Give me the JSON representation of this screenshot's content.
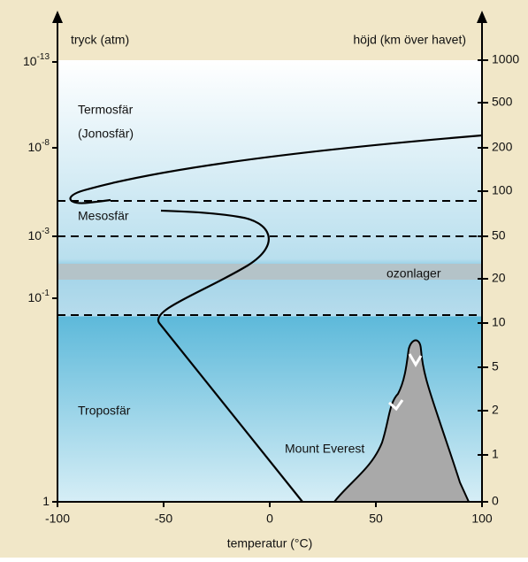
{
  "axes": {
    "left_title": "tryck (atm)",
    "right_title": "höjd (km över havet)",
    "bottom_title": "temperatur (°C)"
  },
  "left_ticks": [
    {
      "base": "10",
      "exp": "-13"
    },
    {
      "base": "10",
      "exp": "-8"
    },
    {
      "base": "10",
      "exp": "-3"
    },
    {
      "base": "10",
      "exp": "-1"
    },
    {
      "base": "1",
      "exp": ""
    }
  ],
  "right_ticks": [
    "1000",
    "500",
    "200",
    "100",
    "50",
    "20",
    "10",
    "5",
    "2",
    "1",
    "0"
  ],
  "bottom_ticks": [
    "-100",
    "-50",
    "0",
    "50",
    "100"
  ],
  "layers": {
    "thermosphere": "Termosfär",
    "ionosphere": "(Jonosfär)",
    "mesosphere": "Mesosfär",
    "ozone": "ozonlager",
    "troposphere": "Troposfär"
  },
  "mountain": "Mount Everest"
}
